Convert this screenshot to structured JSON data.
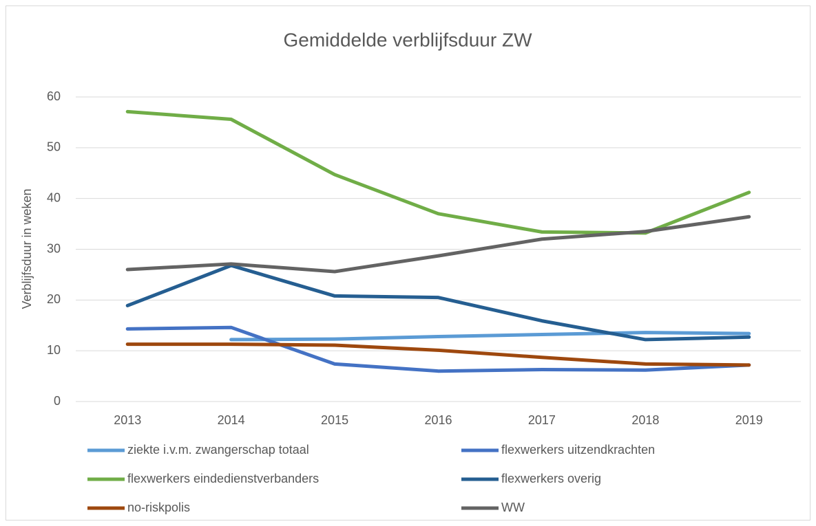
{
  "chart_data": {
    "type": "line",
    "title": "Gemiddelde verblijfsduur ZW",
    "y_label": "Verblijfsduur in weken",
    "categories": [
      "2013",
      "2014",
      "2015",
      "2016",
      "2017",
      "2018",
      "2019"
    ],
    "series": [
      {
        "name": "ziekte i.v.m. zwangerschap totaal",
        "color": "#5b9bd5",
        "values": [
          null,
          12.2,
          12.3,
          12.8,
          13.2,
          13.6,
          13.4
        ]
      },
      {
        "name": "flexwerkers uitzendkrachten",
        "color": "#4472c4",
        "values": [
          14.3,
          14.6,
          7.4,
          6.0,
          6.3,
          6.2,
          7.2
        ]
      },
      {
        "name": "flexwerkers eindedienstverbanders",
        "color": "#70ad47",
        "values": [
          57.1,
          55.6,
          44.7,
          37.0,
          33.4,
          33.2,
          41.2
        ]
      },
      {
        "name": "flexwerkers overig",
        "color": "#255e91",
        "values": [
          18.9,
          26.8,
          20.8,
          20.5,
          15.9,
          12.2,
          12.7
        ]
      },
      {
        "name": "no-riskpolis",
        "color": "#9e480e",
        "values": [
          11.3,
          11.3,
          11.1,
          10.1,
          8.7,
          7.4,
          7.2
        ]
      },
      {
        "name": "WW",
        "color": "#636363",
        "values": [
          26.0,
          27.1,
          25.6,
          28.7,
          32.0,
          33.5,
          36.4
        ]
      }
    ],
    "ylim": [
      0,
      60
    ],
    "yticks": [
      0,
      10,
      20,
      30,
      40,
      50,
      60
    ],
    "grid": true,
    "legend": "bottom"
  }
}
